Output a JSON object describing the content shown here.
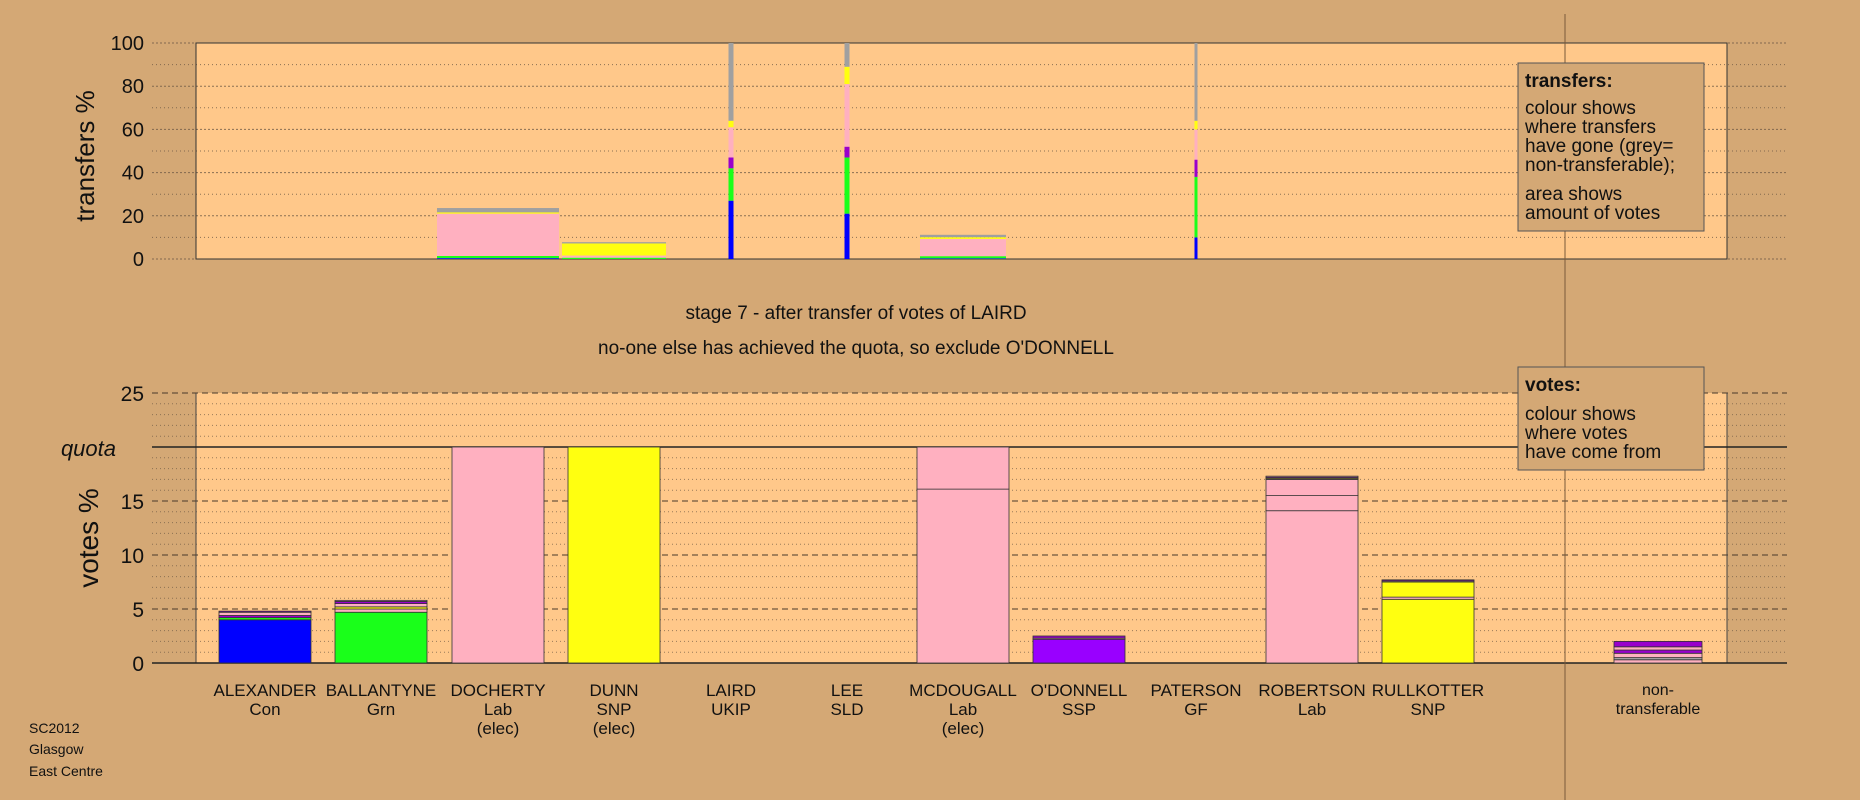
{
  "colors": {
    "background": "#d4a875",
    "plot_background": "#ffc88a",
    "legend_background": "#d4a875",
    "party": {
      "Con": "#0000ff",
      "Grn": "#1aff1a",
      "Lab": "#ffb0c0",
      "SNP": "#ffff10",
      "UKIP": "#9900cc",
      "SLD": "#ffb0c0",
      "SSP": "#9900ff",
      "GF": "#8b7bd8",
      "nontransferable": "#a0a0a0"
    }
  },
  "footer": {
    "line1": "SC2012",
    "line2": "Glasgow",
    "line3": "East Centre"
  },
  "stage": {
    "title": "stage 7 - after transfer of votes of LAIRD",
    "subtitle": "no-one else has achieved the quota, so exclude O'DONNELL"
  },
  "legend_transfers": {
    "title": "transfers:",
    "line1": "colour shows",
    "line2": "where transfers",
    "line3": "have gone (grey=",
    "line4": "non-transferable);",
    "line5": "area shows",
    "line6": "amount of votes"
  },
  "legend_votes": {
    "title": "votes:",
    "line1": "colour shows",
    "line2": "where votes",
    "line3": "have come from"
  },
  "chart_data": [
    {
      "type": "bar",
      "title": "transfers",
      "ylabel": "transfers %",
      "ylim": [
        0,
        100
      ],
      "yticks": [
        0,
        20,
        40,
        60,
        80,
        100
      ],
      "grid": true,
      "legend": "top-right",
      "categories": [
        "ALEXANDER",
        "BALLANTYNE",
        "DOCHERTY",
        "DUNN",
        "LAIRD",
        "LEE",
        "MCDOUGALL",
        "O'DONNELL",
        "PATERSON",
        "ROBERTSON",
        "RULLKOTTER"
      ],
      "series": [
        {
          "candidate": "DOCHERTY",
          "segments": [
            {
              "party": "Con",
              "value": 0.4
            },
            {
              "party": "Grn",
              "value": 1.0
            },
            {
              "party": "Lab",
              "value": 19.6
            },
            {
              "party": "SNP",
              "value": 0.6
            },
            {
              "party": "nontransferable",
              "value": 2.0
            }
          ]
        },
        {
          "candidate": "DUNN",
          "segments": [
            {
              "party": "Grn",
              "value": 0.6
            },
            {
              "party": "Lab",
              "value": 1.0
            },
            {
              "party": "SNP",
              "value": 5.6
            },
            {
              "party": "nontransferable",
              "value": 0.6
            }
          ]
        },
        {
          "candidate": "LAIRD",
          "segments": [
            {
              "party": "Con",
              "value": 27
            },
            {
              "party": "Grn",
              "value": 15
            },
            {
              "party": "UKIP",
              "value": 5
            },
            {
              "party": "Lab",
              "value": 14
            },
            {
              "party": "SNP",
              "value": 3
            },
            {
              "party": "nontransferable",
              "value": 36
            }
          ]
        },
        {
          "candidate": "LEE",
          "segments": [
            {
              "party": "Con",
              "value": 21
            },
            {
              "party": "Grn",
              "value": 26
            },
            {
              "party": "UKIP",
              "value": 5
            },
            {
              "party": "Lab",
              "value": 29
            },
            {
              "party": "SNP",
              "value": 8
            },
            {
              "party": "nontransferable",
              "value": 11
            }
          ]
        },
        {
          "candidate": "MCDOUGALL",
          "segments": [
            {
              "party": "Con",
              "value": 0.3
            },
            {
              "party": "Grn",
              "value": 1.0
            },
            {
              "party": "Lab",
              "value": 8.0
            },
            {
              "party": "SNP",
              "value": 0.8
            },
            {
              "party": "nontransferable",
              "value": 1.1
            }
          ]
        },
        {
          "candidate": "PATERSON",
          "segments": [
            {
              "party": "Con",
              "value": 10
            },
            {
              "party": "Grn",
              "value": 28
            },
            {
              "party": "UKIP",
              "value": 8
            },
            {
              "party": "Lab",
              "value": 14
            },
            {
              "party": "SNP",
              "value": 4
            },
            {
              "party": "nontransferable",
              "value": 36
            }
          ]
        }
      ]
    },
    {
      "type": "bar",
      "title": "votes",
      "ylabel": "votes %",
      "ylim": [
        0,
        25
      ],
      "yticks": [
        0,
        5,
        10,
        15,
        20,
        25
      ],
      "quota": 20,
      "quota_label": "quota",
      "grid": true,
      "legend": "top-right",
      "categories": [
        {
          "name": "ALEXANDER",
          "party": "Con",
          "elected": ""
        },
        {
          "name": "BALLANTYNE",
          "party": "Grn",
          "elected": ""
        },
        {
          "name": "DOCHERTY",
          "party": "Lab",
          "elected": "(elec)"
        },
        {
          "name": "DUNN",
          "party": "SNP",
          "elected": "(elec)"
        },
        {
          "name": "LAIRD",
          "party": "UKIP",
          "elected": ""
        },
        {
          "name": "LEE",
          "party": "SLD",
          "elected": ""
        },
        {
          "name": "MCDOUGALL",
          "party": "Lab",
          "elected": "(elec)"
        },
        {
          "name": "O'DONNELL",
          "party": "SSP",
          "elected": ""
        },
        {
          "name": "PATERSON",
          "party": "GF",
          "elected": ""
        },
        {
          "name": "ROBERTSON",
          "party": "Lab",
          "elected": ""
        },
        {
          "name": "RULLKOTTER",
          "party": "SNP",
          "elected": ""
        }
      ],
      "nontransferable_label": {
        "line1": "non-",
        "line2": "transferable"
      },
      "series": [
        {
          "candidate": "ALEXANDER",
          "segments": [
            {
              "party": "Con",
              "value": 4.0
            },
            {
              "party": "Grn",
              "value": 0.2
            },
            {
              "party": "UKIP",
              "value": 0.2
            },
            {
              "party": "Lab",
              "value": 0.3
            },
            {
              "party": "UKIP",
              "value": 0.1
            }
          ]
        },
        {
          "candidate": "BALLANTYNE",
          "segments": [
            {
              "party": "Grn",
              "value": 4.7
            },
            {
              "party": "Lab",
              "value": 0.3
            },
            {
              "party": "SNP",
              "value": 0.2
            },
            {
              "party": "Lab",
              "value": 0.3
            },
            {
              "party": "UKIP",
              "value": 0.2
            },
            {
              "party": "Lab",
              "value": 0.1
            }
          ]
        },
        {
          "candidate": "DOCHERTY",
          "segments": [
            {
              "party": "Lab",
              "value": 20.0
            }
          ]
        },
        {
          "candidate": "DUNN",
          "segments": [
            {
              "party": "SNP",
              "value": 20.0
            }
          ]
        },
        {
          "candidate": "LAIRD",
          "segments": []
        },
        {
          "candidate": "LEE",
          "segments": []
        },
        {
          "candidate": "MCDOUGALL",
          "segments": [
            {
              "party": "Lab",
              "value": 16.1
            },
            {
              "party": "Lab",
              "value": 3.9
            }
          ]
        },
        {
          "candidate": "O'DONNELL",
          "segments": [
            {
              "party": "SSP",
              "value": 2.2
            },
            {
              "party": "Lab",
              "value": 0.1
            },
            {
              "party": "UKIP",
              "value": 0.2
            }
          ]
        },
        {
          "candidate": "PATERSON",
          "segments": []
        },
        {
          "candidate": "ROBERTSON",
          "segments": [
            {
              "party": "Lab",
              "value": 14.1
            },
            {
              "party": "Lab",
              "value": 1.4
            },
            {
              "party": "Lab",
              "value": 1.5
            },
            {
              "party": "SNP",
              "value": 0.1
            },
            {
              "party": "UKIP",
              "value": 0.1
            },
            {
              "party": "Lab",
              "value": 0.1
            }
          ]
        },
        {
          "candidate": "RULLKOTTER",
          "segments": [
            {
              "party": "SNP",
              "value": 5.9
            },
            {
              "party": "Lab",
              "value": 0.2
            },
            {
              "party": "SNP",
              "value": 1.4
            },
            {
              "party": "Lab",
              "value": 0.1
            },
            {
              "party": "UKIP",
              "value": 0.1
            }
          ]
        },
        {
          "candidate": "non-transferable",
          "segments": [
            {
              "party": "Lab",
              "value": 0.3
            },
            {
              "party": "nontransferable",
              "value": 0.2
            },
            {
              "party": "Lab",
              "value": 0.4
            },
            {
              "party": "UKIP",
              "value": 0.3
            },
            {
              "party": "Lab",
              "value": 0.3
            },
            {
              "party": "UKIP",
              "value": 0.5
            }
          ]
        }
      ]
    }
  ]
}
